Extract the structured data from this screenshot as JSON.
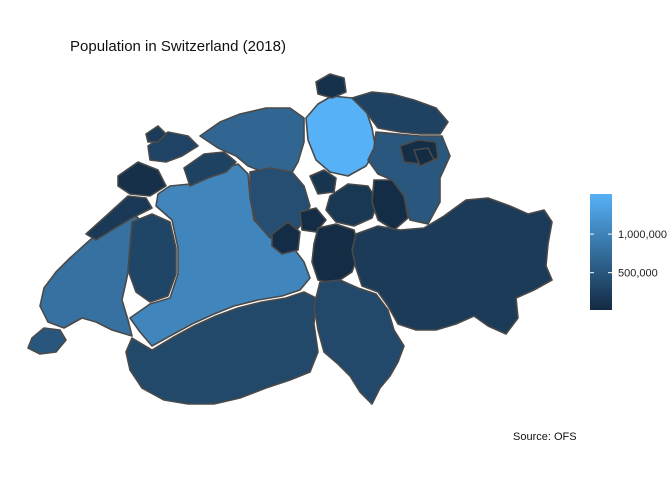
{
  "title": "Population in Switzerland (2018)",
  "caption": "Source: OFS",
  "legend": {
    "min": 16000,
    "max": 1520000,
    "ticks": [
      {
        "value": 500000,
        "label": "500,000"
      },
      {
        "value": 1000000,
        "label": "1,000,000"
      }
    ],
    "color_low": "#132B43",
    "color_high": "#56B1F7"
  },
  "colors": {
    "border": "#4a4a4a",
    "background": "#ffffff"
  },
  "regions": [
    {
      "id": "ZH",
      "value": 1520000
    },
    {
      "id": "BE",
      "value": 1035000
    },
    {
      "id": "VD",
      "value": 800000
    },
    {
      "id": "AG",
      "value": 680000
    },
    {
      "id": "SG",
      "value": 508000
    },
    {
      "id": "GE",
      "value": 500000
    },
    {
      "id": "LU",
      "value": 410000
    },
    {
      "id": "TI",
      "value": 353000
    },
    {
      "id": "VS",
      "value": 344000
    },
    {
      "id": "FR",
      "value": 318000
    },
    {
      "id": "BL",
      "value": 289000
    },
    {
      "id": "SO",
      "value": 273000
    },
    {
      "id": "TG",
      "value": 276000
    },
    {
      "id": "GR",
      "value": 198000
    },
    {
      "id": "BS",
      "value": 195000
    },
    {
      "id": "NE",
      "value": 177000
    },
    {
      "id": "SZ",
      "value": 159000
    },
    {
      "id": "ZG",
      "value": 127000
    },
    {
      "id": "SH",
      "value": 82000
    },
    {
      "id": "JU",
      "value": 73000
    },
    {
      "id": "AR",
      "value": 55000
    },
    {
      "id": "NW",
      "value": 43000
    },
    {
      "id": "GL",
      "value": 40000
    },
    {
      "id": "OW",
      "value": 38000
    },
    {
      "id": "UR",
      "value": 36000
    },
    {
      "id": "AI",
      "value": 16000
    }
  ]
}
